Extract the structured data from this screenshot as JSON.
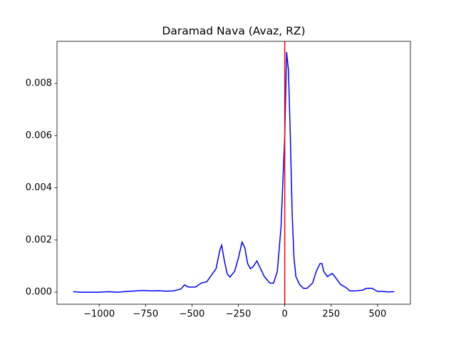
{
  "chart_data": {
    "type": "line",
    "title": "Daramad Nava (Avaz, RZ)",
    "x": [
      -1140,
      -1100,
      -1000,
      -950,
      -900,
      -850,
      -800,
      -760,
      -720,
      -680,
      -640,
      -600,
      -560,
      -540,
      -520,
      -480,
      -450,
      -420,
      -390,
      -370,
      -350,
      -340,
      -325,
      -310,
      -295,
      -270,
      -250,
      -230,
      -215,
      -200,
      -185,
      -170,
      -150,
      -130,
      -110,
      -80,
      -60,
      -40,
      -20,
      0,
      10,
      20,
      30,
      40,
      50,
      60,
      80,
      100,
      120,
      150,
      170,
      190,
      200,
      210,
      230,
      255,
      270,
      300,
      330,
      350,
      380,
      420,
      440,
      470,
      500,
      530,
      560,
      590
    ],
    "series": [
      {
        "color": "#0000ff",
        "values": [
          2e-05,
          0.0,
          0.0,
          2e-05,
          0.0,
          3e-05,
          5e-05,
          7e-05,
          5e-05,
          6e-05,
          4e-05,
          5e-05,
          0.00012,
          0.00028,
          0.0002,
          0.0002,
          0.00035,
          0.0004,
          0.0007,
          0.0009,
          0.0016,
          0.0018,
          0.0012,
          0.0007,
          0.00058,
          0.0008,
          0.0013,
          0.00192,
          0.0017,
          0.0011,
          0.0009,
          0.00098,
          0.0012,
          0.0009,
          0.0006,
          0.00035,
          0.00035,
          0.0008,
          0.0025,
          0.006,
          0.0092,
          0.0085,
          0.006,
          0.003,
          0.0013,
          0.0006,
          0.0003,
          0.00015,
          0.00015,
          0.00035,
          0.0008,
          0.0011,
          0.0011,
          0.0008,
          0.0006,
          0.00072,
          0.0006,
          0.0003,
          0.00018,
          5e-05,
          5e-05,
          8e-05,
          0.00015,
          0.00015,
          3e-05,
          3e-05,
          1e-05,
          2e-05
        ]
      }
    ],
    "vline": 0,
    "vline_color": "#ff0000",
    "xlim": [
      -1227,
      677
    ],
    "ylim": [
      -0.00046,
      0.00961
    ],
    "xticks": [
      {
        "value": -1000,
        "label": "−1000"
      },
      {
        "value": -750,
        "label": "−750"
      },
      {
        "value": -500,
        "label": "−500"
      },
      {
        "value": -250,
        "label": "−250"
      },
      0,
      250,
      500
    ],
    "yticks": [
      {
        "value": 0,
        "label": "0.000"
      },
      {
        "value": 0.002,
        "label": "0.002"
      },
      {
        "value": 0.004,
        "label": "0.004"
      },
      {
        "value": 0.006,
        "label": "0.006"
      },
      {
        "value": 0.008,
        "label": "0.008"
      }
    ]
  }
}
